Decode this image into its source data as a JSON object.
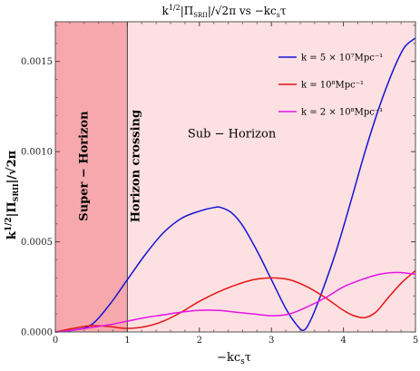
{
  "chart_data": {
    "type": "line",
    "title": "k^{1/2}|Π_SRII|/√2π vs -kcₛτ",
    "xlabel": "-kcₛτ",
    "ylabel": "k^{1/2}|Π_SRII|/√2π",
    "xlim": [
      0,
      5
    ],
    "ylim": [
      0,
      0.00172
    ],
    "x_ticks": [
      "0",
      "1",
      "2",
      "3",
      "4",
      "5"
    ],
    "y_ticks": [
      "0.0000",
      "0.0005",
      "0.0010",
      "0.0015"
    ],
    "y_tick_values": [
      0,
      0.0005,
      0.001,
      0.0015
    ],
    "x_tick_values": [
      0,
      1,
      2,
      3,
      4,
      5
    ],
    "legend_position": "top-right",
    "regions": [
      {
        "label": "Super − Horizon",
        "x_range": [
          0,
          1
        ],
        "color": "#f7a8ad"
      },
      {
        "label": "Sub − Horizon",
        "x_range": [
          1,
          5
        ],
        "color": "#fde0e2"
      }
    ],
    "annotations": [
      {
        "label": "Horizon crossing",
        "x": 1
      }
    ],
    "series": [
      {
        "name": "k = 5 × 10⁷Mpc⁻¹",
        "color": "#1414d4",
        "x": [
          0,
          0.25,
          0.5,
          0.75,
          1.0,
          1.25,
          1.5,
          1.75,
          2.0,
          2.2,
          2.3,
          2.45,
          2.6,
          2.8,
          3.0,
          3.2,
          3.35,
          3.45,
          3.55,
          3.7,
          3.9,
          4.1,
          4.3,
          4.5,
          4.7,
          4.85,
          5.0
        ],
        "y": [
          0,
          1e-05,
          4e-05,
          0.00015,
          0.00029,
          0.00043,
          0.00055,
          0.00063,
          0.00067,
          0.00069,
          0.00069,
          0.00066,
          0.00059,
          0.00045,
          0.00029,
          0.00013,
          4e-05,
          1e-05,
          7e-05,
          0.00022,
          0.00045,
          0.00072,
          0.001,
          0.00125,
          0.00146,
          0.00158,
          0.00163
        ]
      },
      {
        "name": "k = 10⁸Mpc⁻¹",
        "color": "#e81414",
        "x": [
          0,
          0.25,
          0.5,
          0.75,
          1.0,
          1.25,
          1.5,
          1.75,
          2.0,
          2.25,
          2.5,
          2.75,
          3.0,
          3.25,
          3.5,
          3.75,
          4.0,
          4.15,
          4.3,
          4.45,
          4.6,
          4.8,
          5.0
        ],
        "y": [
          0,
          2e-05,
          3.5e-05,
          3e-05,
          2e-05,
          3e-05,
          6e-05,
          0.00011,
          0.00017,
          0.00022,
          0.00026,
          0.00029,
          0.0003,
          0.00029,
          0.00025,
          0.00019,
          0.00012,
          9e-05,
          8e-05,
          0.00011,
          0.00018,
          0.00027,
          0.00034
        ]
      },
      {
        "name": "k = 2 × 10⁸Mpc⁻¹",
        "color": "#e614e6",
        "x": [
          0,
          0.25,
          0.5,
          0.75,
          1.0,
          1.25,
          1.5,
          1.75,
          2.0,
          2.25,
          2.5,
          2.75,
          3.0,
          3.25,
          3.5,
          3.75,
          4.0,
          4.25,
          4.5,
          4.75,
          5.0
        ],
        "y": [
          0,
          1e-05,
          2.5e-05,
          4e-05,
          6e-05,
          8e-05,
          9.5e-05,
          0.00011,
          0.00012,
          0.00012,
          0.00011,
          0.0001,
          9e-05,
          0.0001,
          0.00014,
          0.00019,
          0.00025,
          0.00029,
          0.00032,
          0.00033,
          0.00032
        ]
      }
    ]
  }
}
